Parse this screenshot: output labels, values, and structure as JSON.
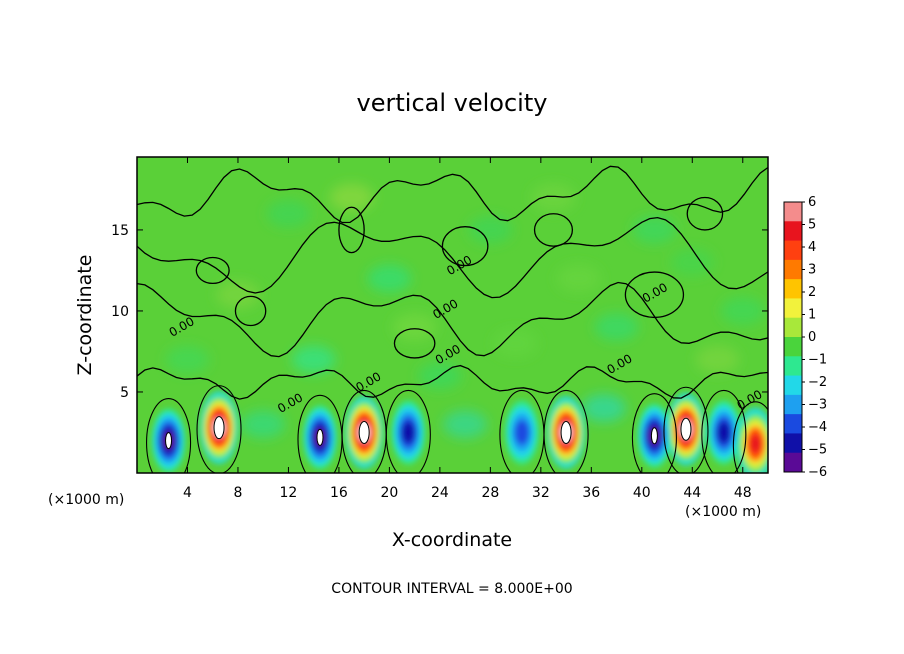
{
  "chart_data": {
    "type": "heatmap",
    "title": "vertical velocity",
    "xlabel": "X-coordinate",
    "ylabel": "Z-coordinate",
    "x_unit_label": "(×1000 m)",
    "x_unit_label_right": "(×1000 m)",
    "xlim": [
      0,
      50
    ],
    "ylim": [
      0,
      19.5
    ],
    "x_ticks": [
      4,
      8,
      12,
      16,
      20,
      24,
      28,
      32,
      36,
      40,
      44,
      48
    ],
    "y_ticks": [
      5,
      10,
      15
    ],
    "colorbar": {
      "range": [
        -6,
        6
      ],
      "tick_labels": [
        "6",
        "5",
        "4",
        "3",
        "2",
        "1",
        "0",
        "-1",
        "-2",
        "-3",
        "-4",
        "-5",
        "-6"
      ],
      "colors": [
        "#f48c8c",
        "#e8141e",
        "#ff4010",
        "#ff7a00",
        "#ffc400",
        "#f2f23c",
        "#a8e83a",
        "#4ad43c",
        "#2ee890",
        "#22d8e8",
        "#1ea0f0",
        "#1a4ae0",
        "#1010a8",
        "#5a0a96"
      ]
    },
    "updraft_cells": [
      {
        "x": 6.5,
        "z": 2.8,
        "peak": 6
      },
      {
        "x": 18.0,
        "z": 2.5,
        "peak": 6
      },
      {
        "x": 34.0,
        "z": 2.5,
        "peak": 6
      },
      {
        "x": 43.5,
        "z": 2.7,
        "peak": 6
      },
      {
        "x": 49.0,
        "z": 1.8,
        "peak": 4
      }
    ],
    "downdraft_cells": [
      {
        "x": 2.5,
        "z": 2.0,
        "peak": -5
      },
      {
        "x": 14.5,
        "z": 2.2,
        "peak": -5
      },
      {
        "x": 21.5,
        "z": 2.5,
        "peak": -4
      },
      {
        "x": 30.5,
        "z": 2.5,
        "peak": -3
      },
      {
        "x": 41.0,
        "z": 2.3,
        "peak": -5
      },
      {
        "x": 46.5,
        "z": 2.5,
        "peak": -4
      }
    ],
    "contour_labels": [
      "0.00",
      "0.00",
      "0.00",
      "0.00",
      "0.00",
      "0.00",
      "0.00",
      "0.00",
      "0.00"
    ],
    "contour_interval": "CONTOUR INTERVAL = 8.000E+00"
  }
}
